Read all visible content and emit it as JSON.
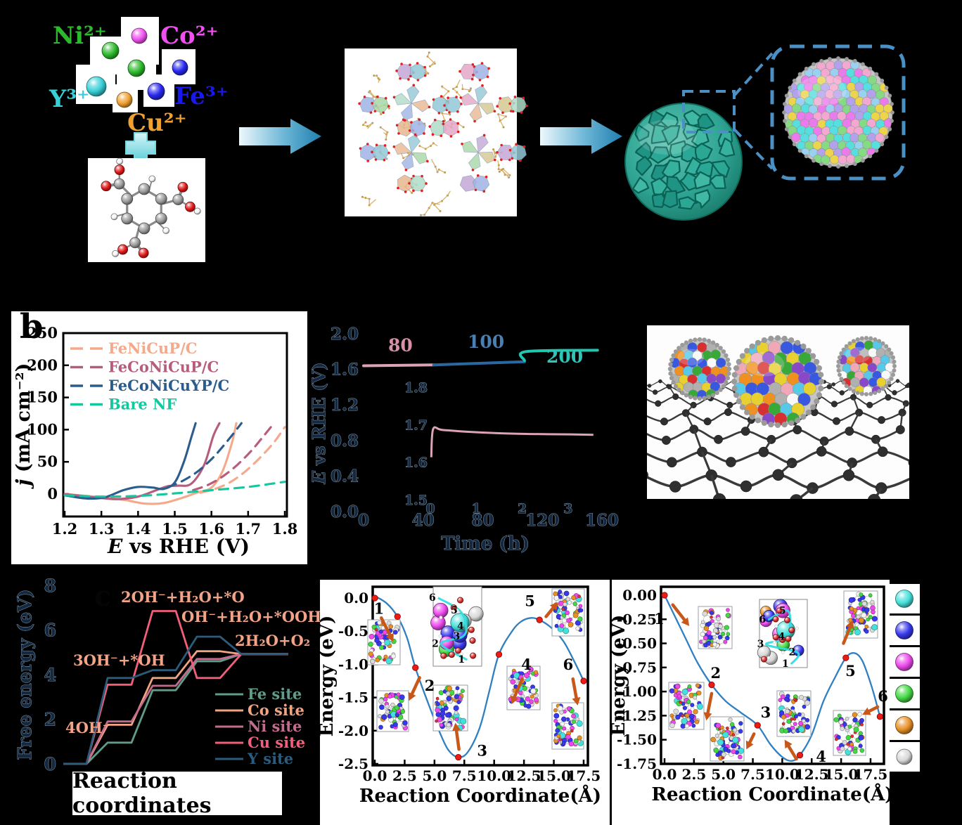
{
  "panel_a": {
    "ions": [
      {
        "label": "Ni²⁺",
        "color": "#2db92c"
      },
      {
        "label": "Co²⁺",
        "color": "#ee50f0"
      },
      {
        "label": "Y³⁺",
        "color": "#38d0d8"
      },
      {
        "label": "Fe³⁺",
        "color": "#1818f0"
      },
      {
        "label": "Cu²⁺",
        "color": "#f0a030"
      }
    ],
    "plus_sign": "+",
    "sphere_colors": [
      "#ee50f0",
      "#2db92c",
      "#2db92c",
      "#2828f0",
      "#38d0d8",
      "#2828f0",
      "#f0a030"
    ],
    "zoom_box_color": "#4a90c4"
  },
  "panel_b": {
    "label": "b",
    "legend": [
      {
        "label": "FeNiCuP/C",
        "color": "#f5a98b"
      },
      {
        "label": "FeCoNiCuP/C",
        "color": "#b65c7d"
      },
      {
        "label": "FeCoNiCuYP/C",
        "color": "#2b5c8e"
      },
      {
        "label": "Bare NF",
        "color": "#16c79e"
      }
    ]
  },
  "panel_c": {
    "label": "c",
    "reaction_box": "Reaction coordinates"
  },
  "atom_legend": {
    "items": [
      {
        "name": "cyan-sphere",
        "color": "#45e0dc"
      },
      {
        "name": "blue-sphere",
        "color": "#3838ec"
      },
      {
        "name": "magenta-sphere",
        "color": "#ec48ec"
      },
      {
        "name": "green-sphere",
        "color": "#44d844"
      },
      {
        "name": "orange-sphere",
        "color": "#e89028"
      },
      {
        "name": "gray-sphere",
        "color": "#d8d8d8"
      }
    ]
  },
  "chart_data": [
    {
      "id": "lsv",
      "type": "line",
      "title": "",
      "xlabel": "E vs RHE (V)",
      "ylabel": "j (mA cm⁻²)",
      "xlim": [
        1.2,
        1.8
      ],
      "ylim": [
        0,
        250
      ],
      "grid": false,
      "legend_position": "upper-left",
      "xticks": [
        "1.2",
        "1.3",
        "1.4",
        "1.5",
        "1.6",
        "1.7",
        "1.8"
      ],
      "yticks": [
        "0",
        "50",
        "100",
        "150",
        "200",
        "250"
      ],
      "series": [
        {
          "name": "FeNiCuP/C",
          "variant": "dashed",
          "color": "#f5a98b",
          "x": [
            1.57,
            1.61,
            1.65,
            1.69,
            1.73,
            1.77,
            1.8
          ],
          "y": [
            2,
            8,
            18,
            34,
            55,
            80,
            104
          ]
        },
        {
          "name": "FeNiCuP/C",
          "variant": "solid",
          "color": "#f5a98b",
          "x": [
            1.2,
            1.28,
            1.36,
            1.42,
            1.47,
            1.52,
            1.56,
            1.6,
            1.63,
            1.655,
            1.668
          ],
          "y": [
            0,
            -4,
            -9,
            -15,
            -14,
            -6,
            2,
            10,
            35,
            78,
            110
          ]
        },
        {
          "name": "FeCoNiCuP/C",
          "variant": "dashed",
          "color": "#b65c7d",
          "x": [
            1.55,
            1.59,
            1.63,
            1.67,
            1.71,
            1.745,
            1.765
          ],
          "y": [
            6,
            14,
            27,
            45,
            68,
            92,
            106
          ]
        },
        {
          "name": "FeCoNiCuP/C",
          "variant": "solid",
          "color": "#b65c7d",
          "x": [
            1.2,
            1.28,
            1.34,
            1.4,
            1.45,
            1.48,
            1.51,
            1.545,
            1.58,
            1.605,
            1.622
          ],
          "y": [
            0,
            -5,
            -8,
            -4,
            6,
            12,
            13,
            16,
            45,
            90,
            110
          ]
        },
        {
          "name": "FeCoNiCuYP/C",
          "variant": "dashed",
          "color": "#2b5c8e",
          "x": [
            1.48,
            1.52,
            1.56,
            1.6,
            1.63,
            1.66,
            1.682
          ],
          "y": [
            10,
            20,
            34,
            54,
            73,
            94,
            110
          ]
        },
        {
          "name": "FeCoNiCuYP/C",
          "variant": "solid",
          "color": "#2b5c8e",
          "x": [
            1.2,
            1.26,
            1.31,
            1.36,
            1.4,
            1.44,
            1.47,
            1.5,
            1.525,
            1.545,
            1.557
          ],
          "y": [
            -2,
            -7,
            -5,
            6,
            11,
            10,
            8,
            18,
            50,
            88,
            110
          ]
        },
        {
          "name": "Bare NF",
          "variant": "dashed",
          "color": "#16c79e",
          "x": [
            1.2,
            1.3,
            1.4,
            1.5,
            1.6,
            1.7,
            1.8
          ],
          "y": [
            -2,
            -4,
            -3,
            1,
            6,
            11,
            19
          ]
        }
      ]
    },
    {
      "id": "stability",
      "type": "line",
      "title": "",
      "xlabel": "Time (h)",
      "ylabel": "E vs RHE (V)",
      "xlim": [
        0,
        160
      ],
      "ylim": [
        0,
        2
      ],
      "grid": false,
      "xticks": [
        "0",
        "40",
        "80",
        "120",
        "160"
      ],
      "yticks": [
        "0.0",
        "0.4",
        "0.8",
        "1.2",
        "1.6",
        "2.0"
      ],
      "segments": [
        {
          "label": "80",
          "line_color": "#dca3b6",
          "label_color": "#d88fa8",
          "x": [
            0,
            47
          ],
          "y": [
            1.64,
            1.65
          ]
        },
        {
          "label": "100",
          "line_color": "#2968a3",
          "label_color": "#4a7fb5",
          "x": [
            47,
            108
          ],
          "y": [
            1.65,
            1.685
          ]
        },
        {
          "label": "200",
          "line_color": "#1fc7b0",
          "label_color": "#2ec4b6",
          "x": [
            108,
            109,
            157
          ],
          "y": [
            1.7,
            1.8,
            1.815
          ]
        }
      ],
      "inset": {
        "xlim": [
          0,
          3.6
        ],
        "ylim": [
          1.5,
          1.8
        ],
        "xticks": [
          "0",
          "1",
          "2",
          "3"
        ],
        "yticks": [
          "1.5",
          "1.6",
          "1.7",
          "1.8"
        ],
        "color": "#dca3b6",
        "x": [
          0.02,
          0.06,
          0.25,
          0.8,
          1.5,
          2.2,
          3.0,
          3.55
        ],
        "y": [
          1.615,
          1.69,
          1.688,
          1.683,
          1.679,
          1.677,
          1.676,
          1.675
        ]
      }
    },
    {
      "id": "free_energy",
      "type": "line",
      "title": "",
      "xlabel": "Reaction coordinates",
      "ylabel": "Free energy (eV)",
      "ylim": [
        0,
        8
      ],
      "yticks": [
        "0",
        "2",
        "4",
        "6",
        "8"
      ],
      "grid": false,
      "legend_position": "lower-right",
      "step_labels": [
        "4OH⁻",
        "3OH⁻+*OH",
        "2OH⁻+H₂O+*O",
        "OH⁻+H₂O+*OOH",
        "2H₂O+O₂"
      ],
      "series": [
        {
          "name": "Fe site",
          "color": "#5f9c8a",
          "values": [
            0,
            0.95,
            3.3,
            4.6,
            4.92
          ]
        },
        {
          "name": "Co site",
          "color": "#f2a380",
          "values": [
            0,
            1.75,
            3.85,
            5.05,
            4.92
          ]
        },
        {
          "name": "Ni site",
          "color": "#c26d8d",
          "values": [
            0,
            1.9,
            3.5,
            4.7,
            4.92
          ]
        },
        {
          "name": "Cu site",
          "color": "#f25f7a",
          "values": [
            0,
            3.55,
            6.85,
            3.85,
            4.92
          ]
        },
        {
          "name": "Y site",
          "color": "#2b5c7e",
          "values": [
            0,
            3.85,
            4.2,
            5.7,
            4.92
          ]
        }
      ]
    },
    {
      "id": "pathway_d",
      "type": "line",
      "title": "",
      "xlabel": "Reaction Coordinate(Å)",
      "ylabel": "Energy (eV)",
      "xlim": [
        -0.9,
        18.6
      ],
      "ylim": [
        -2.62,
        0.18
      ],
      "grid": false,
      "xticks": [
        "0.0",
        "2.5",
        "5.0",
        "7.5",
        "10.0",
        "12.5",
        "15.0",
        "17.5"
      ],
      "yticks": [
        "0.0",
        "-0.5",
        "-1.0",
        "-1.5",
        "-2.0",
        "-2.5"
      ],
      "curve_color": "#2f7fc1",
      "point_color": "#ec1c12",
      "arrow_color": "#c8581a",
      "curve_x": [
        0,
        1,
        1.9,
        2.7,
        3.4,
        4.5,
        5.5,
        6.2,
        7.0,
        7.8,
        8.8,
        9.6,
        10.4,
        11.5,
        12.3,
        13.1,
        13.8,
        14.8,
        15.8,
        16.7,
        17.5
      ],
      "curve_y": [
        0.03,
        -0.08,
        -0.28,
        -0.6,
        -1.05,
        -1.6,
        -2.05,
        -2.3,
        -2.4,
        -2.32,
        -1.95,
        -1.4,
        -0.85,
        -0.5,
        -0.35,
        -0.3,
        -0.33,
        -0.45,
        -0.65,
        -0.95,
        -1.25
      ],
      "points": [
        [
          0,
          0
        ],
        [
          1.9,
          -0.28
        ],
        [
          3.4,
          -1.05
        ],
        [
          7.0,
          -2.4
        ],
        [
          10.4,
          -0.85
        ],
        [
          13.8,
          -0.33
        ],
        [
          17.5,
          -1.25
        ]
      ],
      "annotations": [
        {
          "n": "1",
          "tx": 0.35,
          "ty": -0.24,
          "ax": 0.55,
          "ay": -0.3,
          "bx": 1.55,
          "by": -0.66
        },
        {
          "n": "2",
          "tx": 4.6,
          "ty": -1.4,
          "ax": 3.75,
          "ay": -1.2,
          "bx": 2.85,
          "by": -1.55
        },
        {
          "n": "3",
          "tx": 9.0,
          "ty": -2.38,
          "ax": 7.05,
          "ay": -2.28,
          "bx": 6.75,
          "by": -1.88
        },
        {
          "n": "4",
          "tx": 12.7,
          "ty": -1.08,
          "ax": 12.35,
          "ay": -1.22,
          "bx": 11.45,
          "by": -1.6
        },
        {
          "n": "5",
          "tx": 13.0,
          "ty": -0.12,
          "ax": 14.35,
          "ay": -0.28,
          "bx": 15.35,
          "by": -0.06
        },
        {
          "n": "6",
          "tx": 16.2,
          "ty": -1.08,
          "ax": 16.6,
          "ay": -1.22,
          "bx": 17.0,
          "by": -1.62
        }
      ],
      "inset_numbers": [
        "1",
        "2",
        "3",
        "4",
        "5",
        "6"
      ]
    },
    {
      "id": "pathway_e",
      "type": "line",
      "title": "",
      "xlabel": "Reaction Coordinate(Å)",
      "ylabel": "Energy (eV)",
      "xlim": [
        -0.9,
        19.2
      ],
      "ylim": [
        -1.86,
        0.12
      ],
      "grid": false,
      "xticks": [
        "0.0",
        "2.5",
        "5.0",
        "7.5",
        "10.0",
        "12.5",
        "15.0",
        "17.5"
      ],
      "yticks": [
        "0.00",
        "-0.25",
        "-0.50",
        "-0.75",
        "-1.00",
        "-1.25",
        "-1.50",
        "-1.75"
      ],
      "curve_color": "#2f7fc1",
      "point_color": "#ec1c12",
      "arrow_color": "#c8581a",
      "curve_x": [
        0,
        0.8,
        1.8,
        2.8,
        4.0,
        5.2,
        6.5,
        7.9,
        9.0,
        10.0,
        10.8,
        11.5,
        12.5,
        13.5,
        14.5,
        15.4,
        16.1,
        16.8,
        17.6,
        18.3
      ],
      "curve_y": [
        0,
        -0.2,
        -0.45,
        -0.7,
        -0.93,
        -1.1,
        -1.22,
        -1.35,
        -1.55,
        -1.68,
        -1.72,
        -1.66,
        -1.45,
        -1.1,
        -0.85,
        -0.65,
        -0.6,
        -0.68,
        -0.95,
        -1.26
      ],
      "points": [
        [
          0,
          0
        ],
        [
          4.0,
          -0.93
        ],
        [
          7.9,
          -1.35
        ],
        [
          11.5,
          -1.66
        ],
        [
          15.4,
          -0.65
        ],
        [
          18.3,
          -1.26
        ]
      ],
      "annotations": [
        {
          "n": "1",
          "tx": -0.45,
          "ty": -0.3,
          "ax": 0.7,
          "ay": -0.1,
          "bx": 2.1,
          "by": -0.32
        },
        {
          "n": "2",
          "tx": 4.35,
          "ty": -0.86,
          "ax": 4.0,
          "ay": -1.02,
          "bx": 3.55,
          "by": -1.3
        },
        {
          "n": "3",
          "tx": 8.6,
          "ty": -1.27,
          "ax": 7.6,
          "ay": -1.44,
          "bx": 6.95,
          "by": -1.6
        },
        {
          "n": "4",
          "tx": 13.3,
          "ty": -1.73,
          "ax": 11.2,
          "ay": -1.7,
          "bx": 10.2,
          "by": -1.5
        },
        {
          "n": "5",
          "tx": 15.8,
          "ty": -0.84,
          "ax": 15.2,
          "ay": -0.5,
          "bx": 16.0,
          "by": -0.26
        },
        {
          "n": "6",
          "tx": 18.55,
          "ty": -1.1,
          "ax": 18.1,
          "ay": -1.16,
          "bx": 16.8,
          "by": -1.24
        }
      ],
      "inset_numbers": [
        "1",
        "2",
        "3",
        "4",
        "5",
        "6"
      ]
    }
  ]
}
